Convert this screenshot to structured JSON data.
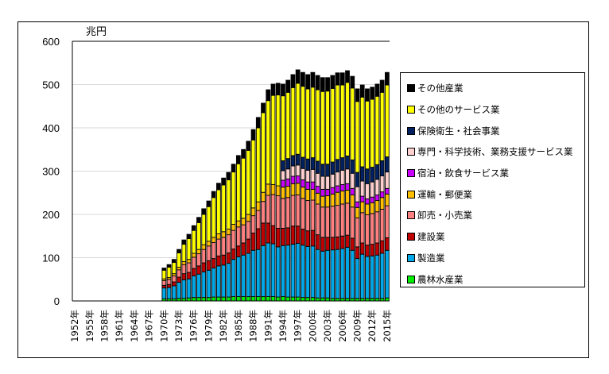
{
  "chart_data": {
    "type": "bar",
    "stacked": true,
    "unit_label": "兆円",
    "ylim": [
      0,
      600
    ],
    "yticks": [
      0,
      100,
      200,
      300,
      400,
      500,
      600
    ],
    "grid": true,
    "legend_position": "right",
    "x": [
      1952,
      1953,
      1954,
      1955,
      1956,
      1957,
      1958,
      1959,
      1960,
      1961,
      1962,
      1963,
      1964,
      1965,
      1966,
      1967,
      1968,
      1969,
      1970,
      1971,
      1972,
      1973,
      1974,
      1975,
      1976,
      1977,
      1978,
      1979,
      1980,
      1981,
      1982,
      1983,
      1984,
      1985,
      1986,
      1987,
      1988,
      1989,
      1990,
      1991,
      1992,
      1993,
      1994,
      1995,
      1996,
      1997,
      1998,
      1999,
      2000,
      2001,
      2002,
      2003,
      2004,
      2005,
      2006,
      2007,
      2008,
      2009,
      2010,
      2011,
      2012,
      2013,
      2014,
      2015
    ],
    "xtick_labels": [
      "1952年",
      "1955年",
      "1958年",
      "1961年",
      "1964年",
      "1967年",
      "1970年",
      "1973年",
      "1976年",
      "1979年",
      "1982年",
      "1985年",
      "1988年",
      "1991年",
      "1994年",
      "1997年",
      "2000年",
      "2003年",
      "2006年",
      "2009年",
      "2012年",
      "2015年"
    ],
    "series": [
      {
        "name": "農林水産業",
        "color": "#00ee00",
        "values": [
          null,
          null,
          null,
          null,
          null,
          null,
          null,
          null,
          null,
          null,
          null,
          null,
          null,
          null,
          null,
          null,
          null,
          null,
          5,
          5,
          5,
          6,
          6,
          7,
          8,
          8,
          8,
          8,
          9,
          9,
          9,
          9,
          10,
          10,
          10,
          10,
          10,
          10,
          10,
          10,
          10,
          9,
          10,
          9,
          9,
          9,
          8,
          8,
          8,
          7,
          7,
          7,
          6,
          6,
          6,
          6,
          6,
          6,
          6,
          6,
          6,
          6,
          6,
          7
        ]
      },
      {
        "name": "製造業",
        "color": "#00a8e8",
        "values": [
          null,
          null,
          null,
          null,
          null,
          null,
          null,
          null,
          null,
          null,
          null,
          null,
          null,
          null,
          null,
          null,
          null,
          null,
          25,
          26,
          30,
          37,
          43,
          44,
          50,
          54,
          59,
          63,
          67,
          72,
          74,
          78,
          86,
          92,
          96,
          100,
          107,
          109,
          118,
          124,
          122,
          116,
          118,
          120,
          122,
          124,
          121,
          118,
          119,
          112,
          108,
          110,
          112,
          113,
          115,
          118,
          111,
          92,
          102,
          97,
          98,
          100,
          104,
          110
        ]
      },
      {
        "name": "建設業",
        "color": "#c00000",
        "values": [
          null,
          null,
          null,
          null,
          null,
          null,
          null,
          null,
          null,
          null,
          null,
          null,
          null,
          null,
          null,
          null,
          null,
          null,
          6,
          7,
          9,
          12,
          14,
          15,
          17,
          19,
          21,
          22,
          22,
          23,
          23,
          24,
          24,
          25,
          28,
          33,
          40,
          48,
          52,
          46,
          42,
          43,
          40,
          40,
          42,
          40,
          37,
          36,
          36,
          34,
          32,
          30,
          29,
          29,
          29,
          28,
          28,
          27,
          26,
          26,
          27,
          28,
          29,
          29
        ]
      },
      {
        "name": "卸売・小売業",
        "color": "#ff8080",
        "values": [
          null,
          null,
          null,
          null,
          null,
          null,
          null,
          null,
          null,
          null,
          null,
          null,
          null,
          null,
          null,
          null,
          null,
          null,
          11,
          12,
          14,
          17,
          21,
          22,
          26,
          28,
          31,
          34,
          37,
          39,
          41,
          42,
          43,
          44,
          42,
          41,
          40,
          42,
          50,
          64,
          72,
          75,
          69,
          70,
          71,
          72,
          71,
          70,
          70,
          71,
          70,
          70,
          72,
          73,
          74,
          74,
          72,
          67,
          70,
          70,
          71,
          72,
          73,
          74
        ]
      },
      {
        "name": "運輸・郵便業",
        "color": "#ffc000",
        "values": [
          null,
          null,
          null,
          null,
          null,
          null,
          null,
          null,
          null,
          null,
          null,
          null,
          null,
          null,
          null,
          null,
          null,
          null,
          4,
          4,
          5,
          6,
          7,
          8,
          9,
          10,
          11,
          11,
          12,
          12,
          13,
          13,
          14,
          14,
          15,
          16,
          18,
          20,
          21,
          26,
          23,
          23,
          26,
          26,
          27,
          27,
          26,
          26,
          25,
          25,
          25,
          26,
          28,
          30,
          30,
          30,
          28,
          24,
          25,
          25,
          25,
          26,
          27,
          27
        ]
      },
      {
        "name": "宿泊・飲食サービス業",
        "color": "#cc00ff",
        "values": [
          null,
          null,
          null,
          null,
          null,
          null,
          null,
          null,
          null,
          null,
          null,
          null,
          null,
          null,
          null,
          null,
          null,
          null,
          null,
          null,
          null,
          null,
          null,
          null,
          null,
          null,
          null,
          null,
          null,
          null,
          null,
          null,
          null,
          null,
          null,
          null,
          null,
          null,
          null,
          null,
          null,
          null,
          16,
          17,
          17,
          17,
          17,
          17,
          17,
          16,
          16,
          15,
          15,
          15,
          15,
          15,
          15,
          13,
          13,
          12,
          13,
          13,
          13,
          13
        ]
      },
      {
        "name": "専門・科学技術、業務支援サービス業",
        "color": "#ffd0d0",
        "values": [
          null,
          null,
          null,
          null,
          null,
          null,
          null,
          null,
          null,
          null,
          null,
          null,
          null,
          null,
          null,
          null,
          null,
          null,
          null,
          null,
          null,
          null,
          null,
          null,
          null,
          null,
          null,
          null,
          null,
          null,
          null,
          null,
          null,
          null,
          null,
          null,
          null,
          null,
          null,
          null,
          null,
          null,
          22,
          23,
          24,
          25,
          26,
          27,
          29,
          30,
          30,
          30,
          31,
          32,
          33,
          34,
          35,
          35,
          35,
          35,
          35,
          36,
          37,
          38
        ]
      },
      {
        "name": "保険衛生・社会事業",
        "color": "#002060",
        "values": [
          null,
          null,
          null,
          null,
          null,
          null,
          null,
          null,
          null,
          null,
          null,
          null,
          null,
          null,
          null,
          null,
          null,
          null,
          null,
          null,
          null,
          null,
          null,
          null,
          null,
          null,
          null,
          null,
          null,
          null,
          null,
          null,
          null,
          null,
          null,
          null,
          null,
          null,
          null,
          null,
          null,
          null,
          23,
          24,
          24,
          25,
          26,
          26,
          27,
          28,
          28,
          28,
          28,
          29,
          29,
          30,
          31,
          33,
          33,
          34,
          34,
          34,
          35,
          35
        ]
      },
      {
        "name": "その他のサービス業",
        "color": "#ffff00",
        "values": [
          null,
          null,
          null,
          null,
          null,
          null,
          null,
          null,
          null,
          null,
          null,
          null,
          null,
          null,
          null,
          null,
          null,
          null,
          20,
          24,
          26,
          33,
          40,
          48,
          53,
          62,
          70,
          80,
          92,
          102,
          108,
          114,
          121,
          132,
          139,
          148,
          157,
          171,
          184,
          193,
          206,
          210,
          150,
          153,
          157,
          164,
          164,
          162,
          163,
          165,
          168,
          169,
          170,
          172,
          168,
          170,
          166,
          164,
          161,
          157,
          157,
          158,
          158,
          166
        ]
      },
      {
        "name": "その他産業",
        "color": "#000000",
        "values": [
          null,
          null,
          null,
          null,
          null,
          null,
          null,
          null,
          null,
          null,
          null,
          null,
          null,
          null,
          null,
          null,
          null,
          null,
          5,
          6,
          7,
          8,
          10,
          10,
          11,
          12,
          13,
          13,
          14,
          15,
          16,
          17,
          18,
          19,
          20,
          21,
          24,
          24,
          22,
          25,
          26,
          27,
          27,
          28,
          30,
          31,
          32,
          33,
          34,
          33,
          32,
          31,
          30,
          28,
          28,
          27,
          27,
          29,
          28,
          28,
          28,
          28,
          28,
          29
        ]
      }
    ]
  }
}
